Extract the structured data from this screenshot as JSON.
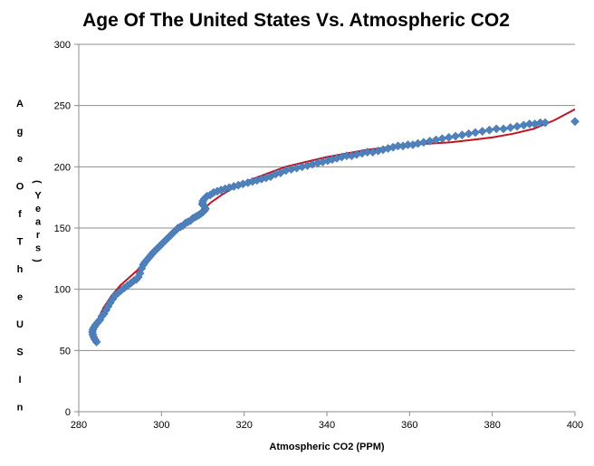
{
  "chart_data": {
    "type": "scatter",
    "title": "Age Of The United States Vs. Atmospheric CO2",
    "xlabel": "Atmospheric CO2 (PPM)",
    "ylabel_parts": [
      "Age Of The US In",
      "(Years)"
    ],
    "xlim": [
      280,
      400
    ],
    "ylim": [
      0,
      300
    ],
    "xticks": [
      280,
      300,
      320,
      340,
      360,
      380,
      400
    ],
    "yticks": [
      0,
      50,
      100,
      150,
      200,
      250,
      300
    ],
    "grid": "horizontal",
    "legend": "none",
    "colors": {
      "marker": "#4f81bd",
      "trendline": "#c0141e",
      "grid": "#8c8c8c"
    },
    "series": [
      {
        "kind": "points",
        "x": [
          284.3,
          283.9,
          283.6,
          283.4,
          283.3,
          283.4,
          283.7,
          284.1,
          284.6,
          285.1,
          285.6,
          286.1,
          286.6,
          287.1,
          287.6,
          288.2,
          288.8,
          289.5,
          290.2,
          291.0,
          291.8,
          292.6,
          293.3,
          293.9,
          294.4,
          294.8,
          295.2,
          295.6,
          296.0,
          296.5,
          297.0,
          297.5,
          298.0,
          298.6,
          299.2,
          299.8,
          300.4,
          301.0,
          301.6,
          302.2,
          302.8,
          303.4,
          304.0,
          304.6,
          305.2,
          305.8,
          306.4,
          307.0,
          307.6,
          308.2,
          308.7,
          309.2,
          309.6,
          310.0,
          310.3,
          310.5,
          310.6,
          310.3,
          310.0,
          309.9,
          310.0,
          310.4,
          311.0,
          311.8,
          312.6,
          313.5,
          314.4,
          315.4,
          316.4,
          317.5,
          318.6,
          319.7,
          320.9,
          322.0,
          323.1,
          324.2,
          325.3,
          326.4,
          327.6,
          328.8,
          330.1,
          331.4,
          332.7,
          334.0,
          335.3,
          336.5,
          337.8,
          339.0,
          340.2,
          341.3,
          342.4,
          343.6,
          344.8,
          346.0,
          347.2,
          348.5,
          349.8,
          351.1,
          352.4,
          353.6,
          354.8,
          356.0,
          357.2,
          358.4,
          359.6,
          360.8,
          362.0,
          363.4,
          364.9,
          366.4,
          367.9,
          369.5,
          371.1,
          372.7,
          374.3,
          375.9,
          377.6,
          379.3,
          381.0,
          382.7,
          384.4,
          386.0,
          387.6,
          389.0,
          390.3,
          391.6,
          392.8,
          400.0
        ],
        "y": [
          57,
          59,
          61,
          63,
          65,
          67,
          69,
          71,
          73,
          75,
          78,
          80,
          83,
          86,
          89,
          92,
          95,
          97,
          99,
          101,
          103,
          105,
          107,
          108,
          110,
          113,
          117,
          120,
          122,
          124,
          126,
          128,
          130,
          132,
          134,
          136,
          138,
          140,
          142,
          144,
          146,
          148,
          150,
          151,
          152,
          154,
          155,
          156,
          158,
          159,
          160,
          161,
          162,
          163,
          164,
          165,
          166,
          168,
          169,
          170,
          172,
          174,
          176,
          177,
          179,
          180,
          181,
          182,
          183,
          184,
          185,
          186,
          187,
          188,
          189,
          190,
          191,
          192,
          194,
          195,
          197,
          198,
          199,
          200,
          201,
          202,
          203,
          204,
          205,
          206,
          207,
          208,
          209,
          209,
          210,
          211,
          212,
          212,
          213,
          214,
          215,
          216,
          217,
          217,
          218,
          218,
          219,
          220,
          221,
          222,
          223,
          224,
          225,
          226,
          227,
          228,
          229,
          230,
          231,
          231,
          232,
          233,
          234,
          235,
          235,
          236,
          236,
          237
        ]
      },
      {
        "kind": "trendline",
        "x": [
          283.4,
          284,
          285,
          286,
          288,
          290,
          292,
          294,
          296,
          298,
          300,
          303,
          306,
          309,
          312,
          315,
          318,
          322,
          326,
          330,
          335,
          340,
          345,
          350,
          355,
          360,
          365,
          370,
          375,
          380,
          385,
          390,
          395,
          400
        ],
        "y": [
          67,
          71,
          78,
          85,
          95,
          103,
          109,
          115,
          122,
          128,
          135,
          145,
          154,
          162,
          171,
          178,
          184,
          190,
          195,
          200,
          204,
          208,
          211,
          214,
          216,
          218,
          219,
          220,
          222,
          224,
          227,
          231,
          238,
          247
        ]
      }
    ]
  }
}
